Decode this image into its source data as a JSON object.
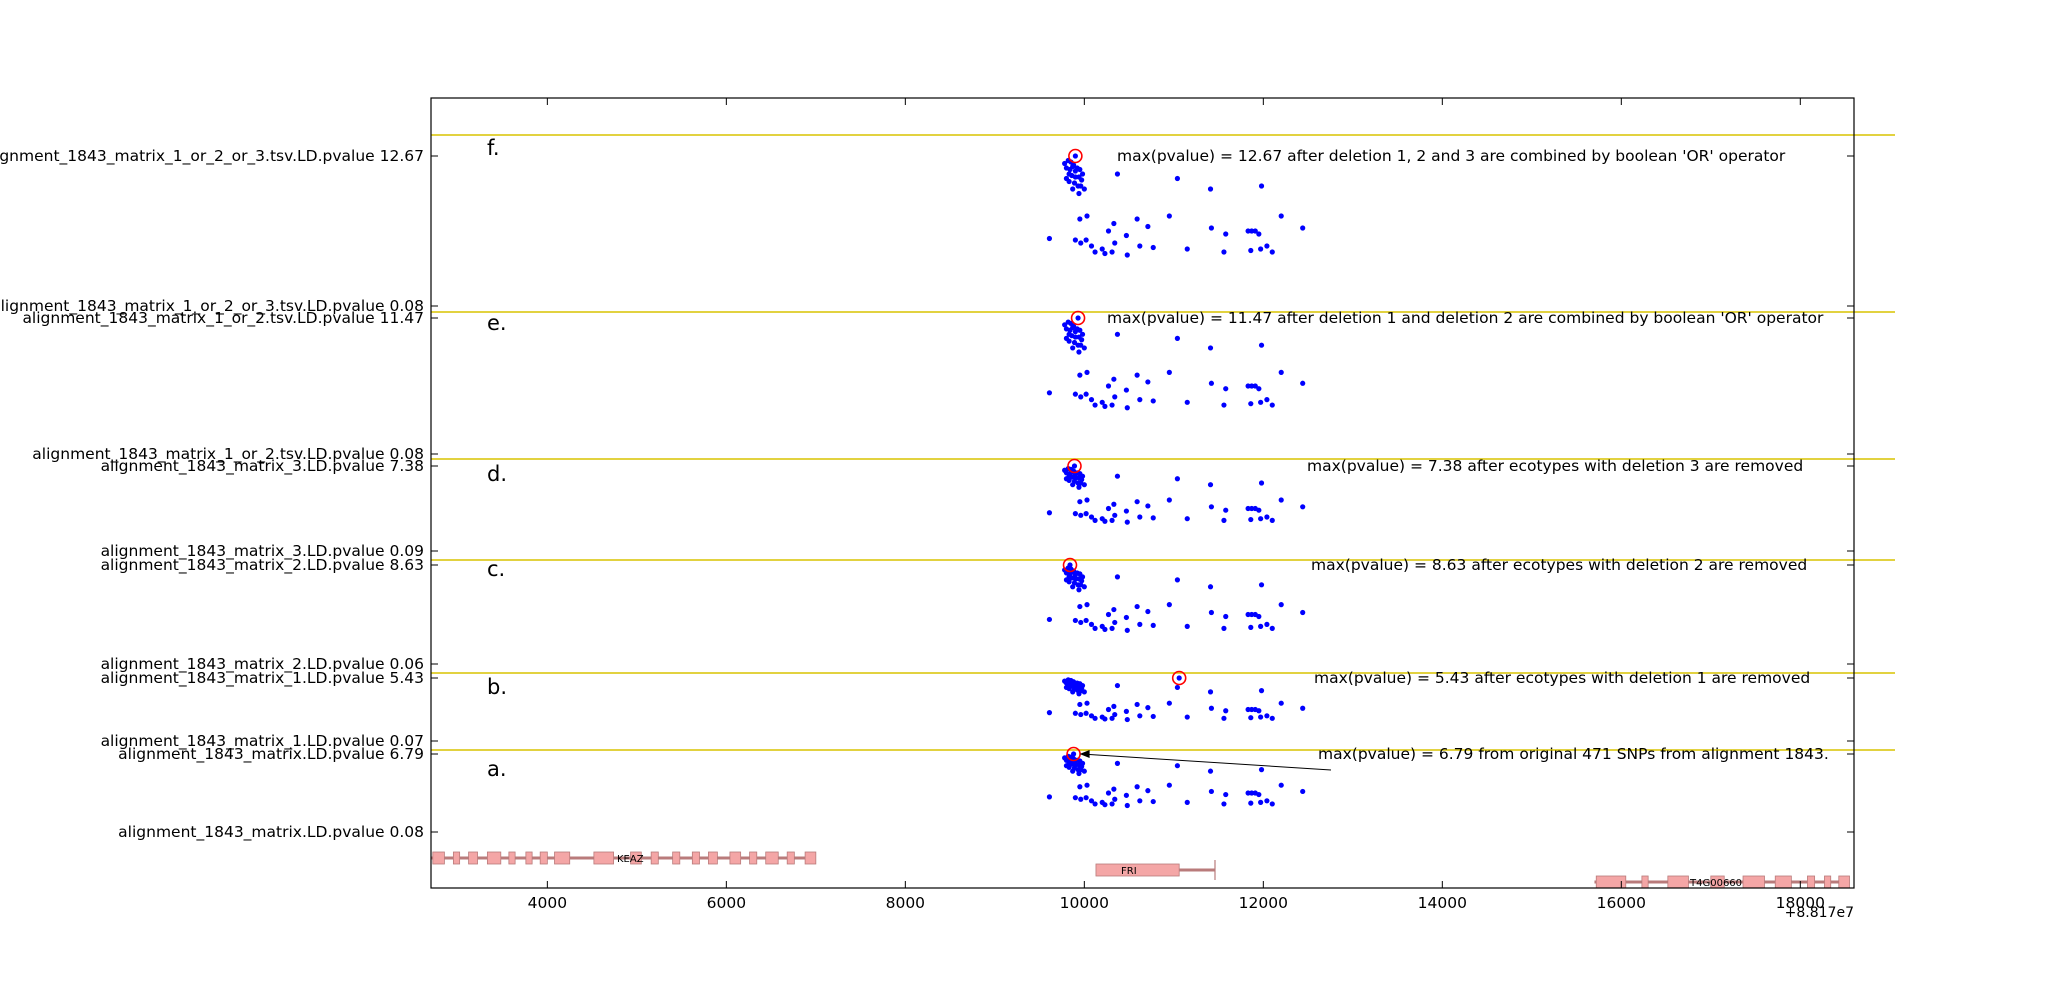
{
  "chart_data": {
    "type": "scatter",
    "title": "",
    "xlabel": "",
    "ylabel": "",
    "xlim": [
      2700,
      18600
    ],
    "x_ticks": [
      4000,
      6000,
      8000,
      10000,
      12000,
      14000,
      16000,
      18000
    ],
    "x_offset_label": "+8.817e7",
    "grid": false,
    "colors": {
      "points": "#0000ff",
      "max_marker": "#ff0000",
      "separator": "#d8c400",
      "gene": "#f4a6a6",
      "gene_edge": "#b97b7b",
      "axes": "#000000"
    },
    "panels": [
      {
        "letter": "f.",
        "top_label": "alignment_1843_matrix_1_or_2_or_3.tsv.LD.pvalue 12.67",
        "bottom_label": "alignment_1843_matrix_1_or_2_or_3.tsv.LD.pvalue 0.08",
        "annotation": "max(pvalue) = 12.67 after deletion 1, 2 and 3 are combined by boolean 'OR' operator",
        "max_point": [
          9900,
          1.0
        ]
      },
      {
        "letter": "e.",
        "top_label": "alignment_1843_matrix_1_or_2.tsv.LD.pvalue 11.47",
        "bottom_label": "alignment_1843_matrix_1_or_2.tsv.LD.pvalue 0.08",
        "annotation": "max(pvalue) = 11.47 after deletion 1 and deletion 2 are combined by boolean 'OR' operator",
        "max_point": [
          9930,
          1.0
        ]
      },
      {
        "letter": "d.",
        "top_label": "alignment_1843_matrix_3.LD.pvalue 7.38",
        "bottom_label": "alignment_1843_matrix_3.LD.pvalue 0.09",
        "annotation": "max(pvalue) = 7.38 after ecotypes with deletion 3 are removed",
        "max_point": [
          9890,
          1.0
        ]
      },
      {
        "letter": "c.",
        "top_label": "alignment_1843_matrix_2.LD.pvalue 8.63",
        "bottom_label": "alignment_1843_matrix_2.LD.pvalue 0.06",
        "annotation": "max(pvalue) = 8.63 after ecotypes with deletion 2 are removed",
        "max_point": [
          9840,
          1.0
        ]
      },
      {
        "letter": "b.",
        "top_label": "alignment_1843_matrix_1.LD.pvalue 5.43",
        "bottom_label": "alignment_1843_matrix_1.LD.pvalue 0.07",
        "annotation": "max(pvalue) = 5.43 after ecotypes with deletion 1 are removed",
        "max_point": [
          11060,
          1.0
        ]
      },
      {
        "letter": "a.",
        "top_label": "alignment_1843_matrix.LD.pvalue 6.79",
        "bottom_label": "alignment_1843_matrix.LD.pvalue 0.08",
        "annotation": "max(pvalue) = 6.79 from original 471 SNPs from alignment 1843.",
        "max_point": [
          9880,
          1.0
        ]
      }
    ],
    "genes": [
      {
        "name": "KEAZ",
        "start": 2700,
        "end": 7000,
        "exons": [
          [
            2720,
            2850
          ],
          [
            2950,
            3020
          ],
          [
            3120,
            3220
          ],
          [
            3330,
            3480
          ],
          [
            3570,
            3640
          ],
          [
            3760,
            3830
          ],
          [
            3920,
            4000
          ],
          [
            4080,
            4250
          ],
          [
            4520,
            4740
          ],
          [
            4930,
            5050
          ],
          [
            5160,
            5240
          ],
          [
            5400,
            5480
          ],
          [
            5620,
            5700
          ],
          [
            5800,
            5900
          ],
          [
            6040,
            6160
          ],
          [
            6260,
            6340
          ],
          [
            6440,
            6580
          ],
          [
            6680,
            6760
          ],
          [
            6880,
            7000
          ]
        ]
      },
      {
        "name": "FRI",
        "start": 10130,
        "end": 11460,
        "exons": [
          [
            10130,
            11060
          ]
        ]
      },
      {
        "name": "AT4G00660",
        "start": 15700,
        "end": 18550,
        "exons": [
          [
            15720,
            16050
          ],
          [
            16230,
            16300
          ],
          [
            16520,
            16750
          ],
          [
            17000,
            17150
          ],
          [
            17360,
            17600
          ],
          [
            17720,
            17900
          ],
          [
            18080,
            18160
          ],
          [
            18270,
            18340
          ],
          [
            18430,
            18550
          ]
        ]
      }
    ],
    "gene_label_display": [
      "KEAZ",
      "FRI",
      "T4G00660"
    ]
  }
}
